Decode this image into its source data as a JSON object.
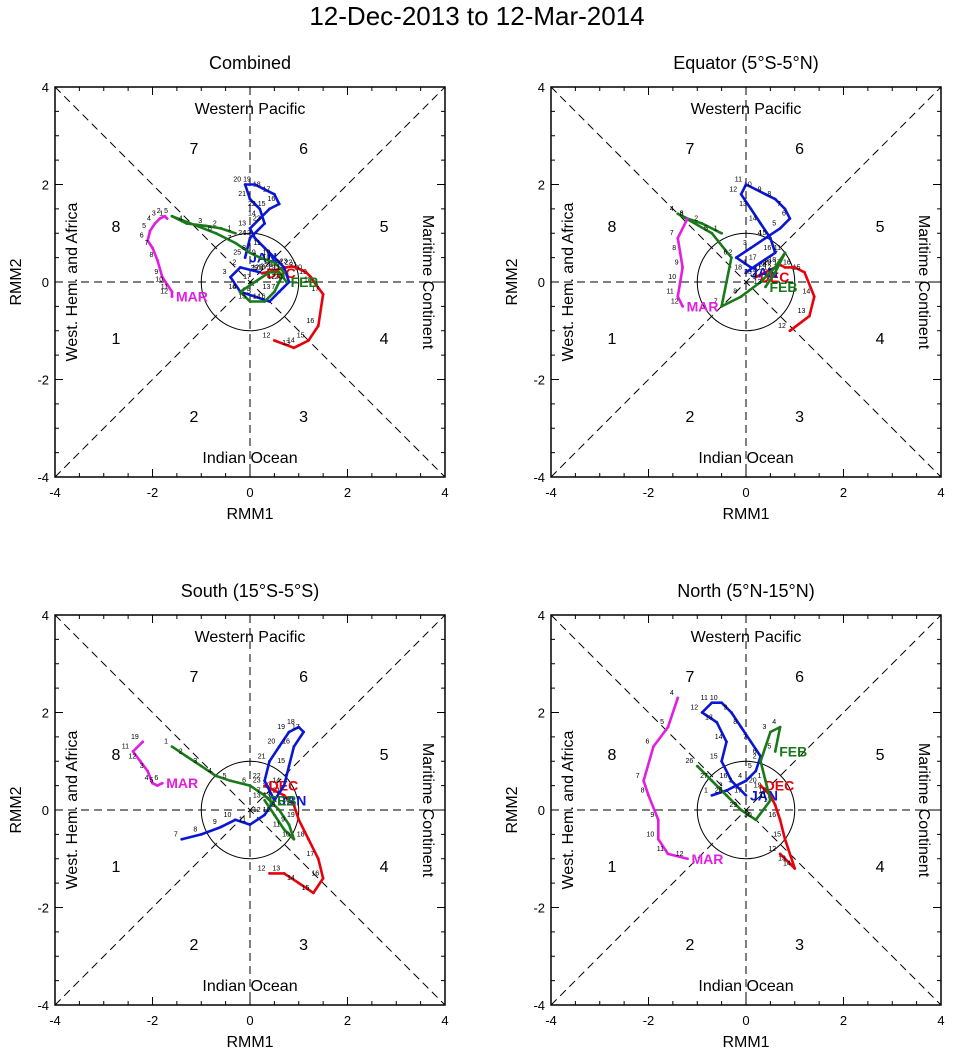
{
  "title": "12-Dec-2013 to 12-Mar-2014",
  "colors": {
    "DEC": "#e8000b",
    "JAN": "#0a16d6",
    "FEB": "#1a7a1a",
    "MAR": "#e21ee2",
    "axis": "#000000"
  },
  "common": {
    "xlabel": "RMM1",
    "ylabel": "RMM2",
    "xlim": [
      -4,
      4
    ],
    "ylim": [
      -4,
      4
    ],
    "major_ticks": [
      -4,
      -2,
      0,
      2,
      4
    ],
    "region_labels": {
      "top": "Western Pacific",
      "bottom": "Indian Ocean",
      "left": "West. Hem. and Africa",
      "right": "Maritime Continent"
    },
    "phase_numbers": [
      "1",
      "2",
      "3",
      "4",
      "5",
      "6",
      "7",
      "8"
    ]
  },
  "chart_data": [
    {
      "type": "line",
      "title": "Combined",
      "series": [
        {
          "name": "DEC",
          "month_label": "DEC",
          "x": [
            0.5,
            0.9,
            1.0,
            1.2,
            1.4,
            1.5,
            1.35,
            1.25,
            1.15,
            1.05,
            0.95,
            0.85,
            0.75,
            0.65,
            0.55,
            0.45,
            0.35,
            0.25
          ],
          "y": [
            -1.2,
            -1.35,
            -1.3,
            -1.2,
            -0.9,
            -0.25,
            -0.05,
            0.1,
            0.2,
            0.25,
            0.3,
            0.32,
            0.3,
            0.28,
            0.25,
            0.22,
            0.2,
            0.18
          ],
          "labels": [
            "12",
            "13",
            "14",
            "15",
            "16",
            "17",
            "18",
            "19",
            "20",
            "21",
            "22",
            "23",
            "24",
            "25",
            "26",
            "27",
            "28",
            "29"
          ]
        },
        {
          "name": "JAN",
          "month_label": "JAN",
          "x": [
            0.2,
            -0.2,
            -0.4,
            -0.2,
            0.1,
            0.4,
            0.6,
            0.8,
            0.7,
            0.5,
            0.3,
            0.1,
            0.0,
            0.2,
            0.4,
            0.6,
            0.5,
            0.3,
            0.1,
            -0.1,
            0.0,
            0.2,
            0.3,
            0.0,
            -0.1
          ],
          "y": [
            0.2,
            0.3,
            0.1,
            -0.2,
            -0.3,
            -0.4,
            -0.2,
            0.0,
            0.3,
            0.5,
            0.7,
            0.9,
            1.1,
            1.3,
            1.5,
            1.6,
            1.8,
            1.9,
            2.0,
            2.0,
            1.7,
            1.5,
            1.2,
            0.9,
            0.5
          ],
          "labels": [
            "1",
            "2",
            "3",
            "4",
            "5",
            "6",
            "7",
            "8",
            "9",
            "10",
            "11",
            "12",
            "13",
            "14",
            "15",
            "16",
            "17",
            "18",
            "19",
            "20",
            "21",
            "22",
            "23",
            "24",
            "25"
          ]
        },
        {
          "name": "FEB",
          "month_label": "FEB",
          "x": [
            -0.3,
            -0.6,
            -0.9,
            -1.3,
            -1.6,
            -0.7,
            -0.3,
            0.0,
            0.2,
            0.5,
            0.7,
            0.6,
            0.5,
            0.3,
            0.0,
            -0.2,
            0.1,
            0.4,
            0.6,
            0.75
          ],
          "y": [
            1.0,
            1.1,
            1.15,
            1.2,
            1.35,
            1.0,
            0.8,
            0.6,
            0.5,
            0.4,
            0.2,
            0.0,
            -0.2,
            -0.4,
            -0.4,
            -0.2,
            0.0,
            0.2,
            0.2,
            0.0
          ],
          "labels": [
            "1",
            "2",
            "3",
            "4",
            "5",
            "6",
            "7",
            "8",
            "9",
            "10",
            "11",
            "12",
            "13",
            "14",
            "15",
            "16",
            "17",
            "18",
            "19",
            "20"
          ]
        },
        {
          "name": "MAR",
          "month_label": "MAR",
          "x": [
            -1.7,
            -1.75,
            -1.85,
            -1.95,
            -2.05,
            -2.1,
            -2.0,
            -1.9,
            -1.8,
            -1.7,
            -1.6,
            -1.6
          ],
          "y": [
            1.3,
            1.35,
            1.3,
            1.2,
            1.05,
            0.85,
            0.7,
            0.45,
            0.1,
            -0.05,
            -0.2,
            -0.3
          ],
          "labels": [
            "1",
            "2",
            "3",
            "4",
            "5",
            "6",
            "7",
            "8",
            "9",
            "10",
            "11",
            "12"
          ]
        }
      ]
    },
    {
      "type": "line",
      "title": "Equator (5°S-5°N)",
      "series": [
        {
          "name": "DEC",
          "month_label": "DEC",
          "x": [
            0.9,
            1.3,
            1.4,
            1.2,
            1.0,
            0.8,
            0.7,
            0.6,
            0.5,
            0.4,
            0.3,
            0.2
          ],
          "y": [
            -1.0,
            -0.7,
            -0.3,
            0.2,
            0.3,
            0.3,
            0.35,
            0.3,
            0.25,
            0.2,
            0.15,
            0.1
          ],
          "labels": [
            "12",
            "13",
            "14",
            "15",
            "16",
            "17",
            "18",
            "19",
            "20",
            "21",
            "22",
            "23"
          ]
        },
        {
          "name": "JAN",
          "month_label": "JAN",
          "x": [
            0.1,
            -0.2,
            0.1,
            0.4,
            0.7,
            0.9,
            0.8,
            0.6,
            0.4,
            0.2,
            0.0,
            -0.1,
            0.1,
            0.3,
            0.5,
            0.6,
            0.3,
            0.0
          ],
          "y": [
            0.3,
            0.5,
            0.7,
            0.9,
            1.1,
            1.3,
            1.5,
            1.7,
            1.8,
            1.9,
            2.0,
            1.8,
            1.5,
            1.2,
            0.9,
            0.6,
            0.4,
            0.2
          ],
          "labels": [
            "1",
            "2",
            "3",
            "4",
            "5",
            "6",
            "7",
            "8",
            "9",
            "10",
            "11",
            "12",
            "13",
            "14",
            "15",
            "16",
            "17",
            "18"
          ]
        },
        {
          "name": "FEB",
          "month_label": "FEB",
          "x": [
            -0.5,
            -0.9,
            -1.2,
            -1.4,
            -0.7,
            -0.3,
            -0.5,
            -0.1,
            0.3,
            0.6,
            0.8,
            0.6,
            0.4
          ],
          "y": [
            1.0,
            1.2,
            1.3,
            1.4,
            1.0,
            0.5,
            -0.5,
            -0.3,
            0.0,
            0.3,
            0.6,
            0.2,
            -0.1
          ],
          "labels": [
            "1",
            "2",
            "3",
            "4",
            "5",
            "6",
            "7",
            "8",
            "9",
            "10",
            "11",
            "12",
            "13"
          ]
        },
        {
          "name": "MAR",
          "month_label": "MAR",
          "x": [
            -1.2,
            -1.4,
            -1.35,
            -1.3,
            -1.35,
            -1.4,
            -1.3
          ],
          "y": [
            1.3,
            0.9,
            0.6,
            0.3,
            0.0,
            -0.3,
            -0.5
          ],
          "labels": [
            "6",
            "7",
            "8",
            "9",
            "10",
            "11",
            "12"
          ]
        }
      ]
    },
    {
      "type": "line",
      "title": "South (15°S-5°S)",
      "series": [
        {
          "name": "DEC",
          "month_label": "DEC",
          "x": [
            0.4,
            0.7,
            1.0,
            1.3,
            1.5,
            1.4,
            1.2,
            1.0,
            0.9,
            0.7,
            0.5,
            0.3
          ],
          "y": [
            -1.3,
            -1.3,
            -1.5,
            -1.7,
            -1.4,
            -1.0,
            -0.6,
            -0.2,
            0.1,
            0.3,
            0.4,
            0.5
          ],
          "labels": [
            "12",
            "13",
            "14",
            "15",
            "16",
            "17",
            "18",
            "19",
            "20",
            "21",
            "22",
            "23"
          ]
        },
        {
          "name": "JAN",
          "month_label": "JAN",
          "x": [
            -1.4,
            -1.0,
            -0.6,
            -0.3,
            0.0,
            0.3,
            0.5,
            0.7,
            0.8,
            0.9,
            1.1,
            1.0,
            0.8,
            0.6,
            0.4,
            0.3,
            0.5
          ],
          "y": [
            -0.6,
            -0.5,
            -0.35,
            -0.2,
            -0.3,
            -0.1,
            0.2,
            0.5,
            0.9,
            1.3,
            1.6,
            1.7,
            1.6,
            1.3,
            1.0,
            0.6,
            0.2
          ],
          "labels": [
            "7",
            "8",
            "9",
            "10",
            "11",
            "12",
            "13",
            "14",
            "15",
            "16",
            "17",
            "18",
            "19",
            "20",
            "21",
            "22",
            "23"
          ]
        },
        {
          "name": "FEB",
          "month_label": "FEB",
          "x": [
            -1.6,
            -1.3,
            -1.0,
            -0.7,
            -0.4,
            0.0,
            0.3,
            0.6,
            0.8,
            0.9,
            0.7,
            0.5,
            0.3
          ],
          "y": [
            1.3,
            1.1,
            0.9,
            0.7,
            0.6,
            0.5,
            0.3,
            0.0,
            -0.3,
            -0.6,
            -0.4,
            -0.1,
            0.2
          ],
          "labels": [
            "1",
            "2",
            "3",
            "4",
            "5",
            "6",
            "7",
            "8",
            "9",
            "10",
            "11",
            "12",
            "13"
          ]
        },
        {
          "name": "MAR",
          "month_label": "MAR",
          "x": [
            -2.2,
            -2.4,
            -2.25,
            -2.1,
            -2.0,
            -1.9,
            -1.8
          ],
          "y": [
            1.4,
            1.2,
            1.0,
            0.8,
            0.55,
            0.5,
            0.55
          ],
          "labels": [
            "19",
            "11",
            "12",
            "3",
            "4",
            "5",
            "6"
          ]
        }
      ]
    },
    {
      "type": "line",
      "title": "North (5°N-15°N)",
      "series": [
        {
          "name": "DEC",
          "month_label": "DEC",
          "x": [
            0.7,
            0.9,
            1.0,
            0.8,
            0.7,
            0.6,
            0.5,
            0.4,
            0.3
          ],
          "y": [
            -0.9,
            -1.1,
            -1.2,
            -0.6,
            -0.2,
            0.1,
            0.3,
            0.4,
            0.5
          ],
          "labels": [
            "12",
            "13",
            "14",
            "15",
            "16",
            "17",
            "18",
            "19",
            "20"
          ]
        },
        {
          "name": "JAN",
          "month_label": "JAN",
          "x": [
            -0.7,
            -0.4,
            -0.2,
            0.0,
            0.2,
            0.3,
            0.1,
            -0.1,
            -0.3,
            -0.5,
            -0.7,
            -0.9,
            -0.6,
            -0.4,
            -0.5,
            -0.3,
            0.0
          ],
          "y": [
            0.3,
            0.4,
            0.5,
            0.6,
            0.8,
            1.1,
            1.4,
            1.7,
            2.0,
            2.2,
            2.2,
            2.0,
            1.8,
            1.4,
            1.0,
            0.6,
            0.3
          ],
          "labels": [
            "1",
            "2",
            "3",
            "4",
            "5",
            "6",
            "7",
            "8",
            "9",
            "10",
            "11",
            "12",
            "13",
            "14",
            "15",
            "16",
            "17"
          ]
        },
        {
          "name": "FEB",
          "month_label": "FEB",
          "x": [
            -1.0,
            -0.7,
            -0.4,
            -0.1,
            0.2,
            0.5,
            0.4,
            0.3,
            0.5,
            0.7,
            0.6
          ],
          "y": [
            0.9,
            0.6,
            0.3,
            0.0,
            -0.2,
            0.2,
            0.6,
            1.0,
            1.6,
            1.7,
            1.2
          ],
          "labels": [
            "26",
            "27",
            "28",
            "29",
            "30",
            "31",
            "1",
            "2",
            "3",
            "4",
            "5"
          ]
        },
        {
          "name": "MAR",
          "month_label": "MAR",
          "x": [
            -1.4,
            -1.6,
            -1.9,
            -2.1,
            -2.0,
            -1.8,
            -1.8,
            -1.6,
            -1.2
          ],
          "y": [
            2.3,
            1.7,
            1.3,
            0.6,
            0.3,
            -0.2,
            -0.6,
            -0.9,
            -1.0
          ],
          "labels": [
            "4",
            "5",
            "6",
            "7",
            "8",
            "9",
            "10",
            "11",
            "12"
          ]
        }
      ]
    }
  ]
}
